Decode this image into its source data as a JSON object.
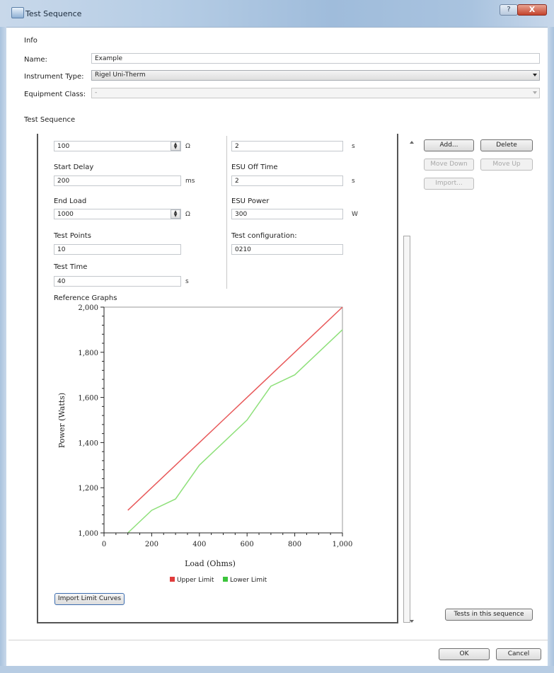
{
  "window": {
    "title": "Test Sequence",
    "help_label": "?",
    "close_label": "X"
  },
  "info": {
    "section_label": "Info",
    "name_label": "Name:",
    "name_value": "Example",
    "instrument_type_label": "Instrument Type:",
    "instrument_type_value": "Rigel Uni-Therm",
    "equipment_class_label": "Equipment Class:",
    "equipment_class_value": "-"
  },
  "test_sequence": {
    "section_label": "Test Sequence",
    "left": {
      "first_value": "100",
      "first_unit": "Ω",
      "start_delay_label": "Start Delay",
      "start_delay_value": "200",
      "start_delay_unit": "ms",
      "end_load_label": "End Load",
      "end_load_value": "1000",
      "end_load_unit": "Ω",
      "test_points_label": "Test Points",
      "test_points_value": "10",
      "test_time_label": "Test Time",
      "test_time_value": "40",
      "test_time_unit": "s"
    },
    "right": {
      "first_value": "2",
      "first_unit": "s",
      "esu_off_time_label": "ESU Off Time",
      "esu_off_time_value": "2",
      "esu_off_time_unit": "s",
      "esu_power_label": "ESU Power",
      "esu_power_value": "300",
      "esu_power_unit": "W",
      "test_configuration_label": "Test configuration:",
      "test_configuration_value": "0210"
    },
    "reference_graphs_label": "Reference Graphs",
    "import_limit_curves_label": "Import Limit Curves"
  },
  "side_buttons": {
    "add": "Add...",
    "delete": "Delete",
    "move_down": "Move Down",
    "move_up": "Move Up",
    "import": "Import...",
    "tests_in_sequence": "Tests in this sequence"
  },
  "footer": {
    "ok": "OK",
    "cancel": "Cancel"
  },
  "chart_data": {
    "type": "line",
    "title": "",
    "xlabel": "Load (Ohms)",
    "ylabel": "Power (Watts)",
    "xlim": [
      0,
      1000
    ],
    "ylim": [
      1000,
      2000
    ],
    "xticks": [
      0,
      200,
      400,
      600,
      800,
      1000
    ],
    "xtick_labels": [
      "0",
      "200",
      "400",
      "600",
      "800",
      "1,000"
    ],
    "yticks": [
      1000,
      1200,
      1400,
      1600,
      1800,
      2000
    ],
    "ytick_labels": [
      "1,000",
      "1,200",
      "1,400",
      "1,600",
      "1,800",
      "2,000"
    ],
    "grid": false,
    "legend_position": "bottom",
    "series": [
      {
        "name": "Upper Limit",
        "color": "#e8595a",
        "x": [
          100,
          200,
          300,
          400,
          500,
          600,
          700,
          800,
          900,
          1000
        ],
        "y": [
          1100,
          1200,
          1300,
          1400,
          1500,
          1600,
          1700,
          1800,
          1900,
          2000
        ]
      },
      {
        "name": "Lower Limit",
        "color": "#8ee07a",
        "x": [
          100,
          200,
          300,
          400,
          500,
          600,
          700,
          800,
          900,
          1000
        ],
        "y": [
          1000,
          1100,
          1150,
          1300,
          1400,
          1500,
          1650,
          1700,
          1800,
          1900
        ]
      }
    ]
  }
}
